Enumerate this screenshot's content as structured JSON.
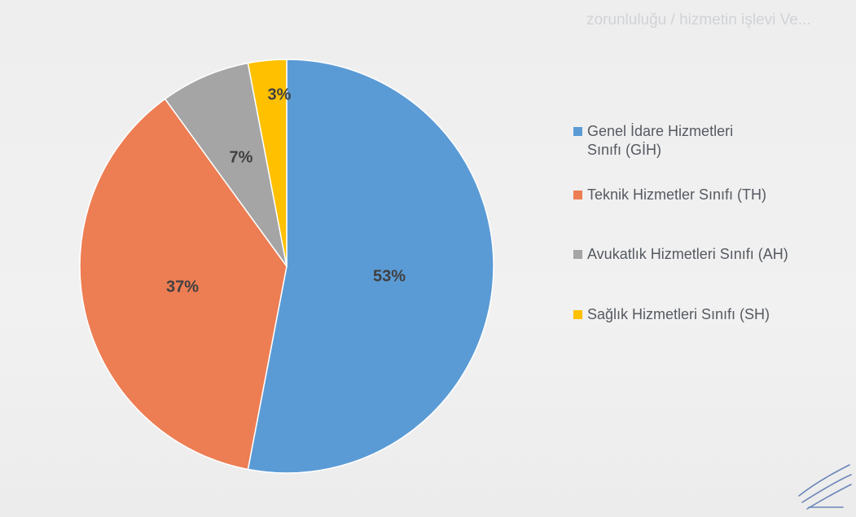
{
  "header": {
    "faint_text": "zorunluluğu / hizmetin işlevi Ve..."
  },
  "chart_data": {
    "type": "pie",
    "title": "",
    "start_angle_deg": 0,
    "direction": "clockwise",
    "grid": false,
    "legend_position": "right",
    "series": [
      {
        "name": "Genel İdare Hizmetleri Sınıfı (GİH)",
        "value": 53,
        "label": "53%",
        "color": "#5b9bd5"
      },
      {
        "name": "Teknik Hizmetler Sınıfı (TH)",
        "value": 37,
        "label": "37%",
        "color": "#ed7d53"
      },
      {
        "name": "Avukatlık Hizmetleri Sınıfı (AH)",
        "value": 7,
        "label": "7%",
        "color": "#a5a5a5"
      },
      {
        "name": "Sağlık Hizmetleri Sınıfı (SH)",
        "value": 3,
        "label": "3%",
        "color": "#ffc000"
      }
    ]
  },
  "legend": {
    "items": [
      {
        "lines": [
          "Genel İdare Hizmetleri",
          "Sınıfı (GİH)"
        ],
        "color": "#5b9bd5"
      },
      {
        "lines": [
          "Teknik Hizmetler Sınıfı (TH)"
        ],
        "color": "#ed7d53"
      },
      {
        "lines": [
          "Avukatlık Hizmetleri Sınıfı (AH)"
        ],
        "color": "#a5a5a5"
      },
      {
        "lines": [
          "Sağlık Hizmetleri Sınıfı (SH)"
        ],
        "color": "#ffc000"
      }
    ]
  }
}
